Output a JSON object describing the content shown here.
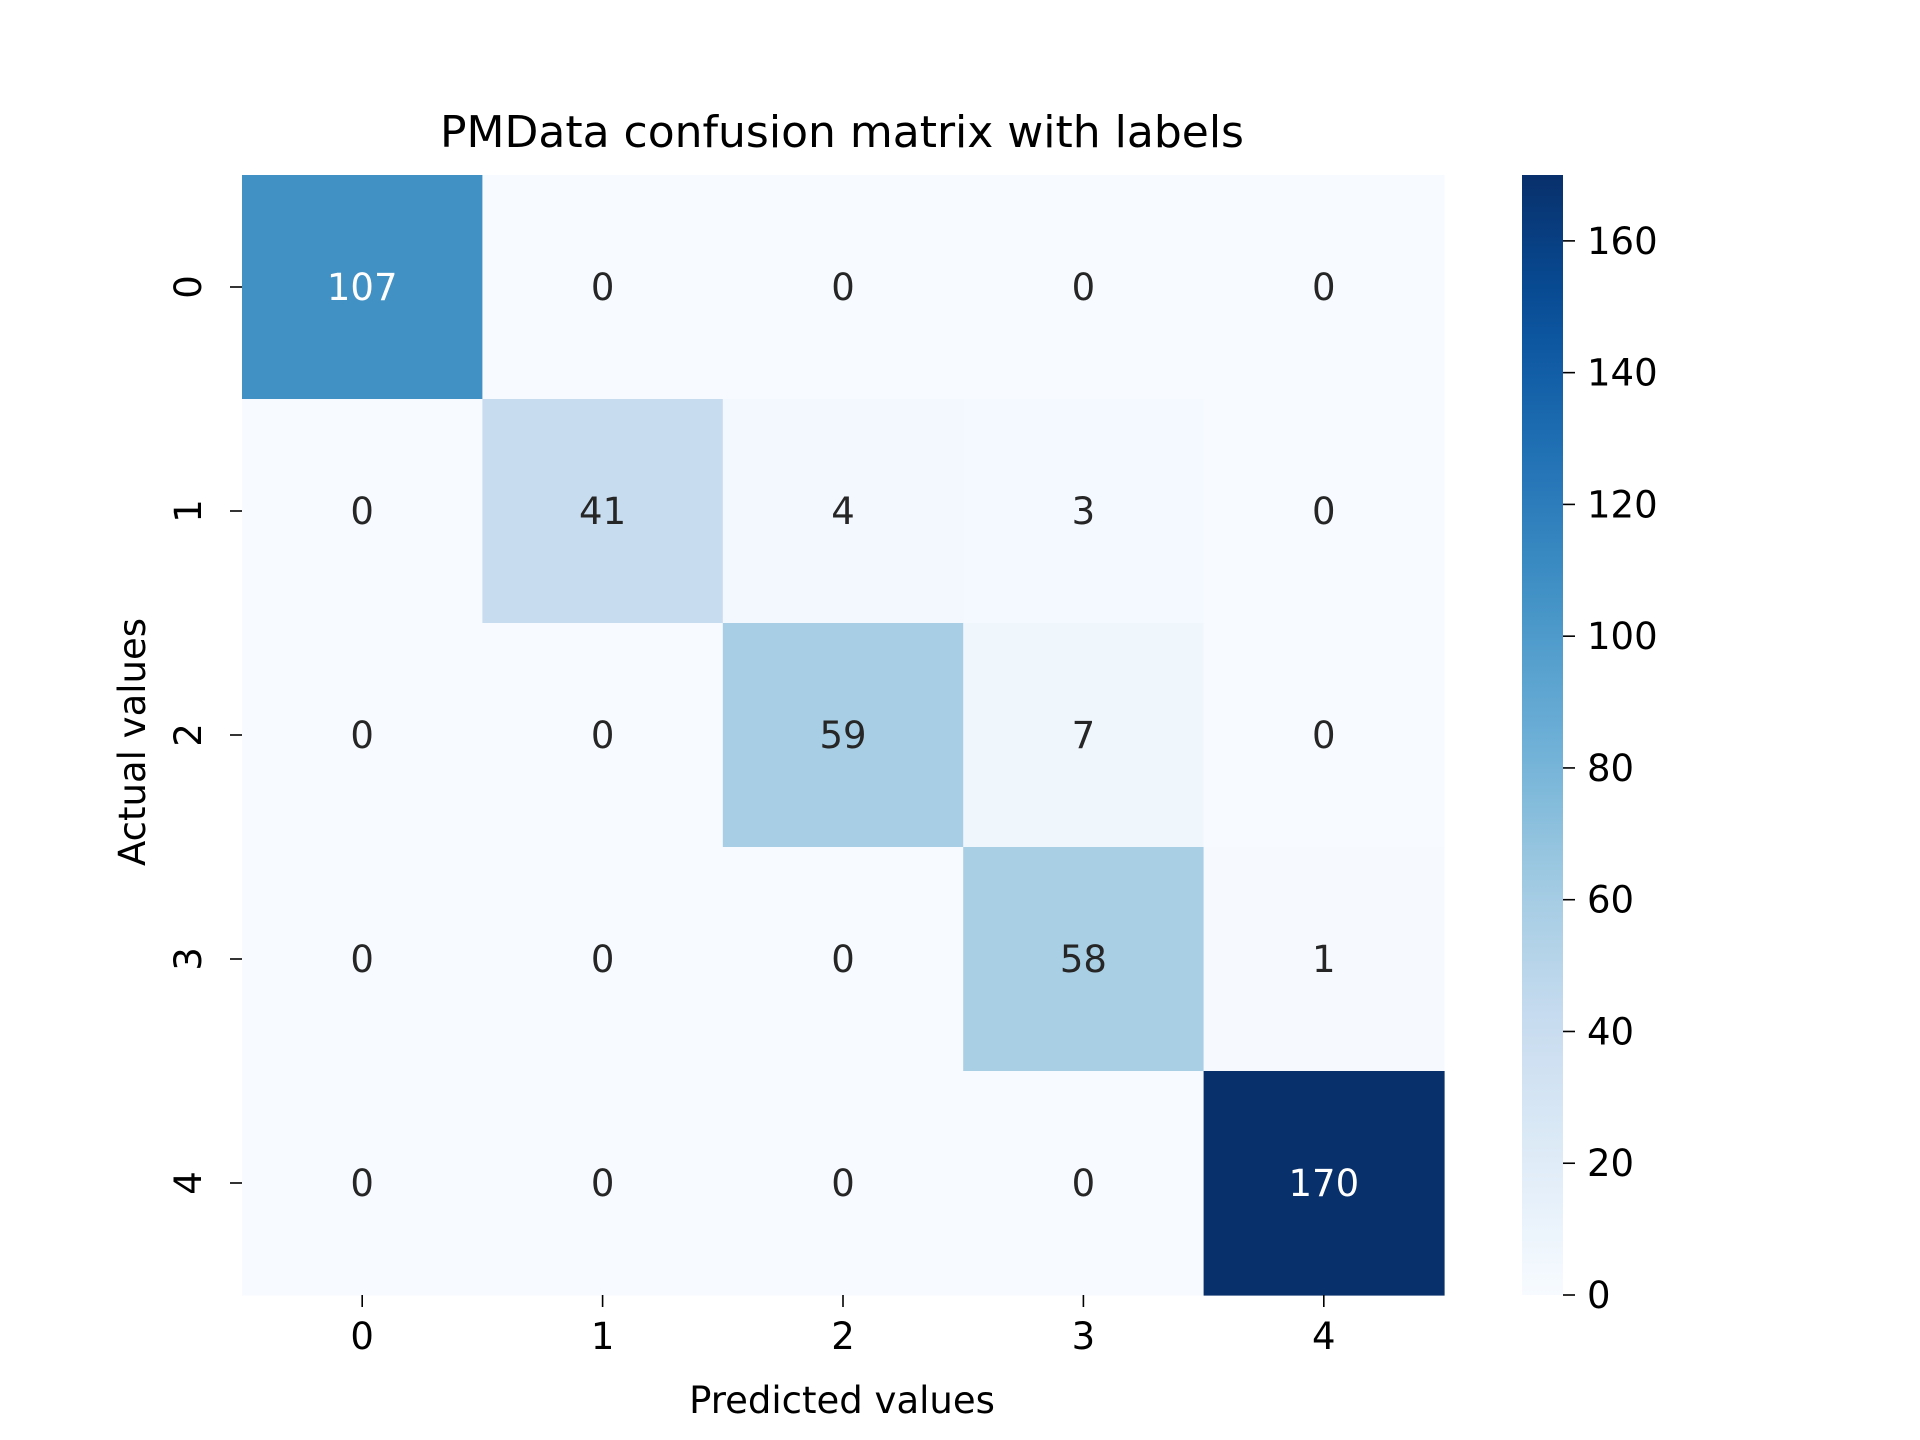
{
  "chart_data": {
    "type": "heatmap",
    "title": "PMData confusion matrix with labels",
    "xlabel": "Predicted values",
    "ylabel": "Actual values",
    "x_ticks": [
      "0",
      "1",
      "2",
      "3",
      "4"
    ],
    "y_ticks": [
      "0",
      "1",
      "2",
      "3",
      "4"
    ],
    "matrix": [
      [
        107,
        0,
        0,
        0,
        0
      ],
      [
        0,
        41,
        4,
        3,
        0
      ],
      [
        0,
        0,
        59,
        7,
        0
      ],
      [
        0,
        0,
        0,
        58,
        1
      ],
      [
        0,
        0,
        0,
        0,
        170
      ]
    ],
    "colormap": "Blues",
    "vmin": 0,
    "vmax": 170,
    "colorbar_ticks": [
      0,
      20,
      40,
      60,
      80,
      100,
      120,
      140,
      160
    ],
    "colorbar_placement": "right",
    "grid": false,
    "colors": {
      "low": "#f7fbff",
      "high": "#08306b",
      "annotation_dark": "#262626",
      "annotation_light": "#ffffff"
    }
  }
}
